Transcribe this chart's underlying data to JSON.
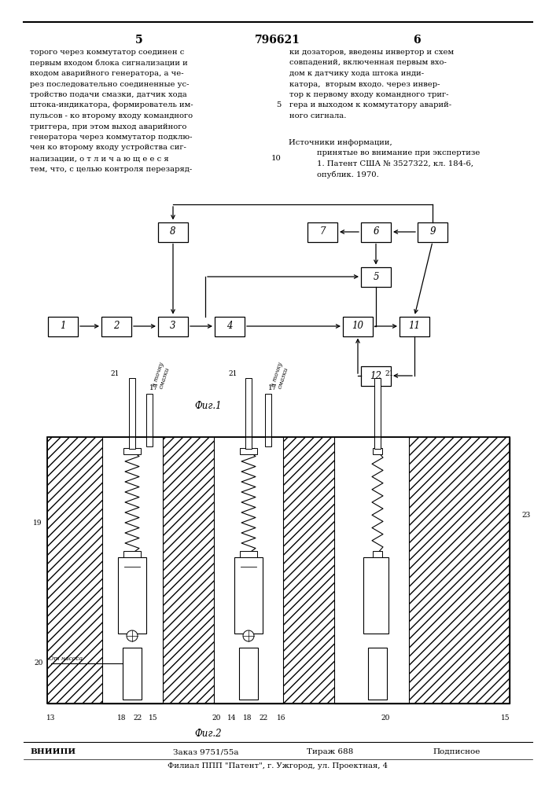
{
  "page_number_left": "5",
  "page_number_center": "796621",
  "page_number_right": "6",
  "text_left": "торого через коммутатор соединен с\nпервым входом блока сигнализации и\nвходом аварийного генератора, а че-\nрез последовательно соединенные ус-\nтройство подачи смазки, датчик хода\nштока-индикатора, формирователь им-\nпульсов - ко второму входу командного\nтриггера, при этом выход аварийного\nгенератора через коммутатор подклю-\nчен ко второму входу устройства сиг-\nнализации, о т л и ч а ю щ е е с я\nтем, что, с целью контроля перезаряд-",
  "text_right": "ки дозаторов, введены инвертор и схем\nсовпадений, включенная первым вхо-\nдом к датчику хода штока инди-\nкатора,  вторым входо. через инвер-\nтор к первому входу командного триг-\nгера и выходом к коммутатору аварий-\nного сигнала.",
  "text_right2": "Источники информации,\nпринятые во внимание при экспертизе\n1. Патент США № 3527322, кл. 184-6,\nопублик. 1970.",
  "line_number_5": "5",
  "line_number_10": "10",
  "fig1_label": "Фиг.1",
  "fig2_label": "Фиг.2",
  "footer_left": "ВНИИПИ",
  "footer_order": "Заказ 9751/55а",
  "footer_edition": "Тираж 688",
  "footer_type": "Подписное",
  "footer_address": "Филиал ППП \"Патент\", г. Ужгород, ул. Проектная, 4",
  "bg_color": "#ffffff",
  "text_color": "#000000"
}
